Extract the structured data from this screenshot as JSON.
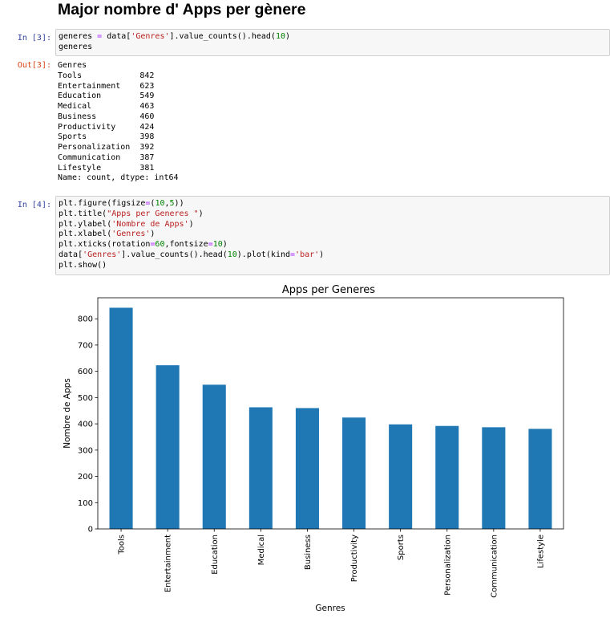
{
  "notebook": {
    "heading": "Major nombre d' Apps per gènere",
    "cell3": {
      "in_prompt": "In [3]:",
      "out_prompt": "Out[3]:",
      "code": [
        [
          {
            "t": "generes "
          },
          {
            "t": "=",
            "c": "op"
          },
          {
            "t": " data["
          },
          {
            "t": "'Genres'",
            "c": "str"
          },
          {
            "t": "].value_counts().head("
          },
          {
            "t": "10",
            "c": "num"
          },
          {
            "t": ")"
          }
        ],
        [
          {
            "t": "generes"
          }
        ]
      ],
      "output": "Genres\nTools            842\nEntertainment    623\nEducation        549\nMedical          463\nBusiness         460\nProductivity     424\nSports           398\nPersonalization  392\nCommunication    387\nLifestyle        381\nName: count, dtype: int64"
    },
    "cell4": {
      "in_prompt": "In [4]:",
      "code": [
        [
          {
            "t": "plt.figure(figsize"
          },
          {
            "t": "=",
            "c": "op"
          },
          {
            "t": "("
          },
          {
            "t": "10",
            "c": "num"
          },
          {
            "t": ","
          },
          {
            "t": "5",
            "c": "num"
          },
          {
            "t": "))"
          }
        ],
        [
          {
            "t": "plt.title("
          },
          {
            "t": "\"Apps per Generes \"",
            "c": "str"
          },
          {
            "t": ")"
          }
        ],
        [
          {
            "t": "plt.ylabel("
          },
          {
            "t": "'Nombre de Apps'",
            "c": "str"
          },
          {
            "t": ")"
          }
        ],
        [
          {
            "t": "plt.xlabel("
          },
          {
            "t": "'Genres'",
            "c": "str"
          },
          {
            "t": ")"
          }
        ],
        [
          {
            "t": "plt.xticks(rotation"
          },
          {
            "t": "=",
            "c": "op"
          },
          {
            "t": "60",
            "c": "num"
          },
          {
            "t": ",fontsize"
          },
          {
            "t": "=",
            "c": "op"
          },
          {
            "t": "10",
            "c": "num"
          },
          {
            "t": ")"
          }
        ],
        [
          {
            "t": "data["
          },
          {
            "t": "'Genres'",
            "c": "str"
          },
          {
            "t": "].value_counts().head("
          },
          {
            "t": "10",
            "c": "num"
          },
          {
            "t": ").plot(kind"
          },
          {
            "t": "=",
            "c": "op"
          },
          {
            "t": "'bar'",
            "c": "str"
          },
          {
            "t": ")"
          }
        ],
        [
          {
            "t": "plt.show()"
          }
        ]
      ]
    }
  },
  "colors": {
    "bar": "#1f77b4",
    "in_prompt": "#303f9f",
    "out_prompt": "#d84315"
  },
  "chart_data": {
    "type": "bar",
    "title": "Apps per Generes",
    "xlabel": "Genres",
    "ylabel": "Nombre de Apps",
    "categories": [
      "Tools",
      "Entertainment",
      "Education",
      "Medical",
      "Business",
      "Productivity",
      "Sports",
      "Personalization",
      "Communication",
      "Lifestyle"
    ],
    "values": [
      842,
      623,
      549,
      463,
      460,
      424,
      398,
      392,
      387,
      381
    ],
    "ylim": [
      0,
      880
    ],
    "yticks": [
      0,
      100,
      200,
      300,
      400,
      500,
      600,
      700,
      800
    ],
    "xtick_rotation": 90,
    "grid": false,
    "legend": "none"
  }
}
